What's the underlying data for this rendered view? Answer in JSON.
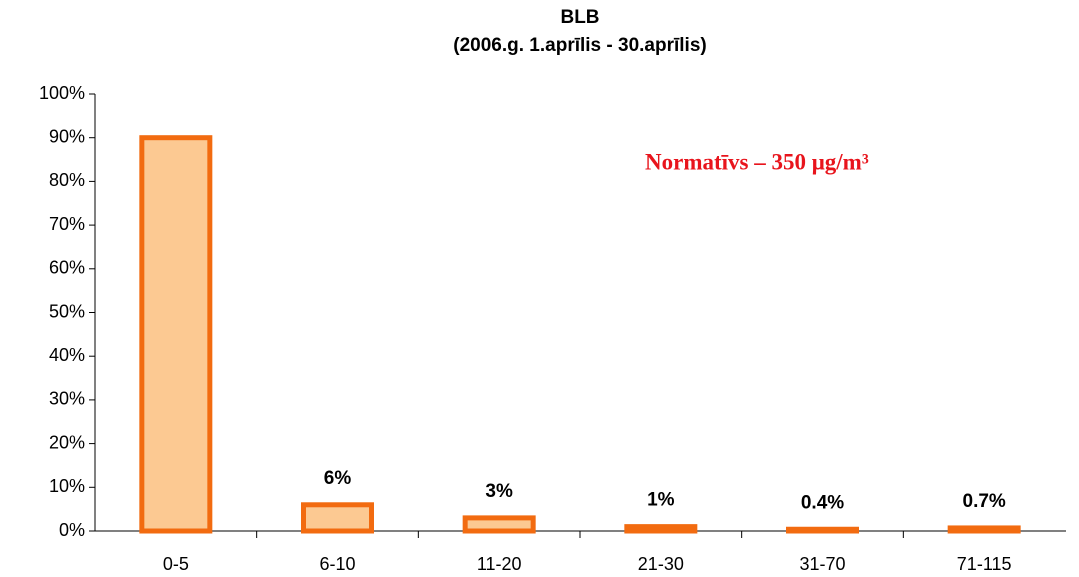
{
  "chart_data": {
    "type": "bar",
    "title": "BLB",
    "subtitle": "(2006.g. 1.aprīlis - 30.aprīlis)",
    "annotation": "Normatīvs – 350 μg/m³",
    "categories": [
      "0-5",
      "6-10",
      "11-20",
      "21-30",
      "31-70",
      "71-115"
    ],
    "values": [
      90,
      6,
      3,
      1,
      0.4,
      0.7
    ],
    "value_labels": [
      null,
      "6%",
      "3%",
      "1%",
      "0.4%",
      "0.7%"
    ],
    "color": "#fcc992",
    "edge_color": "#f26b10",
    "ylim": [
      0,
      100
    ],
    "yticks": [
      {
        "value": 0,
        "label": "0%"
      },
      {
        "value": 10,
        "label": "10%"
      },
      {
        "value": 20,
        "label": "20%"
      },
      {
        "value": 30,
        "label": "30%"
      },
      {
        "value": 40,
        "label": "40%"
      },
      {
        "value": 50,
        "label": "50%"
      },
      {
        "value": 60,
        "label": "60%"
      },
      {
        "value": 70,
        "label": "70%"
      },
      {
        "value": 80,
        "label": "80%"
      },
      {
        "value": 90,
        "label": "90%"
      },
      {
        "value": 100,
        "label": "100%"
      }
    ],
    "grid": false
  }
}
